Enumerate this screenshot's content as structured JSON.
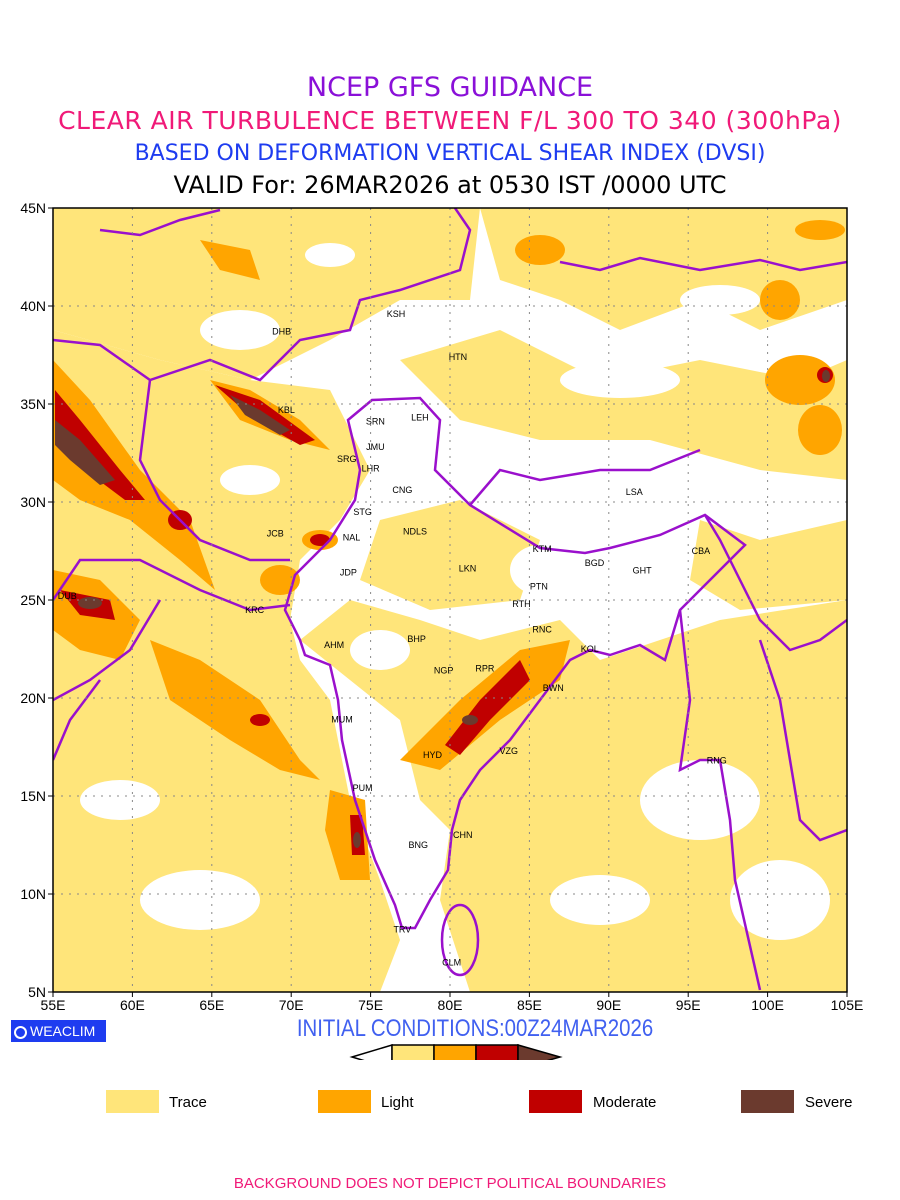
{
  "titles": {
    "line1": "NCEP GFS GUIDANCE",
    "line2": "CLEAR AIR TURBULENCE BETWEEN F/L 300 TO 340 (300hPa)",
    "line3": "BASED ON DEFORMATION VERTICAL SHEAR INDEX (DVSI)",
    "line4": "VALID For: 26MAR2026 at 0530 IST /0000 UTC"
  },
  "map": {
    "lon_range": [
      55,
      105
    ],
    "lat_range": [
      5,
      45
    ],
    "lon_ticks": [
      "55E",
      "60E",
      "65E",
      "70E",
      "75E",
      "80E",
      "85E",
      "90E",
      "95E",
      "100E",
      "105E"
    ],
    "lat_ticks": [
      "5N",
      "10N",
      "15N",
      "20N",
      "25N",
      "30N",
      "35N",
      "40N",
      "45N"
    ],
    "stations": [
      {
        "code": "DHB",
        "lon": 69.4,
        "lat": 38.7
      },
      {
        "code": "KSH",
        "lon": 76.6,
        "lat": 39.6
      },
      {
        "code": "HTN",
        "lon": 80.5,
        "lat": 37.4
      },
      {
        "code": "KBL",
        "lon": 69.7,
        "lat": 34.7
      },
      {
        "code": "SRN",
        "lon": 75.3,
        "lat": 34.1
      },
      {
        "code": "LEH",
        "lon": 78.1,
        "lat": 34.3
      },
      {
        "code": "JMU",
        "lon": 75.3,
        "lat": 32.8
      },
      {
        "code": "SRG",
        "lon": 73.5,
        "lat": 32.2
      },
      {
        "code": "LHR",
        "lon": 75.0,
        "lat": 31.7
      },
      {
        "code": "CNG",
        "lon": 77.0,
        "lat": 30.6
      },
      {
        "code": "STG",
        "lon": 74.5,
        "lat": 29.5
      },
      {
        "code": "JCB",
        "lon": 69.0,
        "lat": 28.4
      },
      {
        "code": "NAL",
        "lon": 73.8,
        "lat": 28.2
      },
      {
        "code": "NDLS",
        "lon": 77.8,
        "lat": 28.5
      },
      {
        "code": "JDP",
        "lon": 73.6,
        "lat": 26.4
      },
      {
        "code": "LKN",
        "lon": 81.1,
        "lat": 26.6
      },
      {
        "code": "KTM",
        "lon": 85.8,
        "lat": 27.6
      },
      {
        "code": "BGD",
        "lon": 89.1,
        "lat": 26.9
      },
      {
        "code": "CBA",
        "lon": 95.8,
        "lat": 27.5
      },
      {
        "code": "GHT",
        "lon": 92.1,
        "lat": 26.5
      },
      {
        "code": "LSA",
        "lon": 91.6,
        "lat": 30.5
      },
      {
        "code": "PTN",
        "lon": 85.6,
        "lat": 25.7
      },
      {
        "code": "DUB",
        "lon": 55.9,
        "lat": 25.2
      },
      {
        "code": "KRC",
        "lon": 67.7,
        "lat": 24.5
      },
      {
        "code": "RTH",
        "lon": 84.5,
        "lat": 24.8
      },
      {
        "code": "AHM",
        "lon": 72.7,
        "lat": 22.7
      },
      {
        "code": "BHP",
        "lon": 77.9,
        "lat": 23.0
      },
      {
        "code": "RNC",
        "lon": 85.8,
        "lat": 23.5
      },
      {
        "code": "KOL",
        "lon": 88.8,
        "lat": 22.5
      },
      {
        "code": "NGP",
        "lon": 79.6,
        "lat": 21.4
      },
      {
        "code": "RPR",
        "lon": 82.2,
        "lat": 21.5
      },
      {
        "code": "BWN",
        "lon": 86.5,
        "lat": 20.5
      },
      {
        "code": "MUM",
        "lon": 73.2,
        "lat": 18.9
      },
      {
        "code": "HYD",
        "lon": 78.9,
        "lat": 17.1
      },
      {
        "code": "VZG",
        "lon": 83.7,
        "lat": 17.3
      },
      {
        "code": "RNG",
        "lon": 96.8,
        "lat": 16.8
      },
      {
        "code": "PUM",
        "lon": 74.5,
        "lat": 15.4
      },
      {
        "code": "CHN",
        "lon": 80.8,
        "lat": 13.0
      },
      {
        "code": "BNG",
        "lon": 78.0,
        "lat": 12.5
      },
      {
        "code": "TRV",
        "lon": 77.0,
        "lat": 8.2
      },
      {
        "code": "CLM",
        "lon": 80.1,
        "lat": 6.5
      }
    ]
  },
  "branding": {
    "logo_text": "WEACLIM"
  },
  "initial_conditions": "INITIAL CONDITIONS:00Z24MAR2026",
  "colorbar": {
    "levels": [
      "1",
      "4",
      "8",
      "12"
    ],
    "colors": [
      "#FFE57A",
      "#FFA500",
      "#C00000",
      "#6B3A2E"
    ]
  },
  "legend": [
    {
      "label": "Trace",
      "color": "#FFE57A"
    },
    {
      "label": "Light",
      "color": "#FFA500"
    },
    {
      "label": "Moderate",
      "color": "#C00000"
    },
    {
      "label": "Severe",
      "color": "#6B3A2E"
    }
  ],
  "footer": "BACKGROUND DOES NOT DEPICT POLITICAL BOUNDARIES"
}
